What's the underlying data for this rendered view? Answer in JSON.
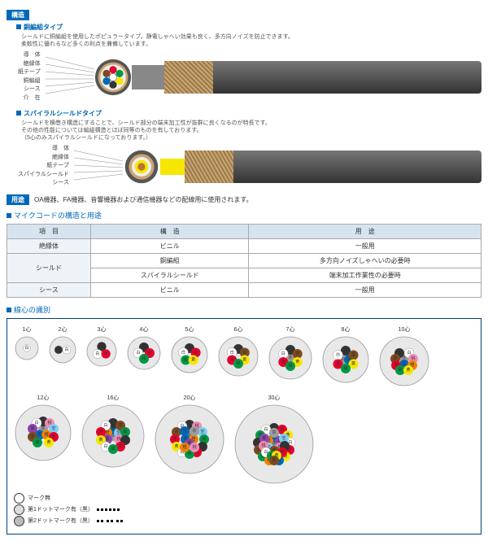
{
  "sections": {
    "structure": "構造",
    "usage": "用途",
    "usage_text": "OA機器、FA機器、音響機器および通信機器などの配線用に使用されます。",
    "table_title": "マイクコードの構造と用途",
    "ident": "線心の識別"
  },
  "type1": {
    "name": "銅編組タイプ",
    "desc1": "シールドに銅編組を使用したポピュラータイプ。静電しゃへい効果も良く、多方向ノイズを防止できます。",
    "desc2": "柔軟性に優れるなど多くの利点を兼備しています。",
    "labels": [
      "導　体",
      "絶縁体",
      "紙テープ",
      "銅編組",
      "シース",
      "介　在"
    ]
  },
  "type2": {
    "name": "スパイラルシールドタイプ",
    "desc1": "シールドを横巻き構造にすることで、シールド部分の端末加工性が抜群に良くなるのが特長です。",
    "desc2": "その他の性能については編組構造とほぼ同等のものを有しております。",
    "desc3": "（5心のみスパイラルシールドになっております。）",
    "labels": [
      "導　体",
      "絶縁体",
      "紙テープ",
      "スパイラルシールド",
      "シース"
    ]
  },
  "table": {
    "headers": [
      "項　目",
      "構　造",
      "用　途"
    ],
    "rows": [
      [
        "絶縁体",
        "ビニル",
        "一般用"
      ],
      [
        "シールド",
        "銅編組",
        "多方向ノイズしゃへいの必要時"
      ],
      [
        "",
        "スパイラルシールド",
        "端末加工作業性の必要時"
      ],
      [
        "シース",
        "ビニル",
        "一般用"
      ]
    ]
  },
  "colors": {
    "白": "#ffffff",
    "黒": "#333333",
    "赤": "#e6002d",
    "緑": "#009944",
    "黄": "#f6e600",
    "茶": "#7c4a1e",
    "青": "#0068b7",
    "灰": "#9e9e9e",
    "桃": "#f08cb4",
    "橙": "#f08300",
    "紫": "#8e44ad",
    "空": "#7ecef4"
  },
  "cores": [
    {
      "label": "1心",
      "r": 14,
      "wires": [
        [
          "白",
          0,
          0
        ]
      ]
    },
    {
      "label": "2心",
      "r": 16,
      "wires": [
        [
          "黒",
          -5,
          0
        ],
        [
          "白",
          5,
          0
        ]
      ]
    },
    {
      "label": "3心",
      "r": 18,
      "wires": [
        [
          "黒",
          0,
          -6
        ],
        [
          "白",
          -5.2,
          3
        ],
        [
          "赤",
          5.2,
          3
        ]
      ]
    },
    {
      "label": "4心",
      "r": 20,
      "wires": [
        [
          "黒",
          0,
          -7
        ],
        [
          "白",
          -7,
          0
        ],
        [
          "赤",
          7,
          0
        ],
        [
          "緑",
          0,
          7
        ]
      ]
    },
    {
      "label": "5心",
      "r": 22,
      "wires": [
        [
          "黒",
          0,
          -8
        ],
        [
          "白",
          -7.6,
          -2.5
        ],
        [
          "赤",
          7.6,
          -2.5
        ],
        [
          "緑",
          -4.7,
          6.5
        ],
        [
          "黄",
          4.7,
          6.5
        ]
      ]
    },
    {
      "label": "6心",
      "r": 24,
      "wires": [
        [
          "黒",
          0,
          -9
        ],
        [
          "白",
          -7.8,
          -4.5
        ],
        [
          "茶",
          7.8,
          -4.5
        ],
        [
          "赤",
          -7.8,
          4.5
        ],
        [
          "黄",
          7.8,
          4.5
        ],
        [
          "緑",
          0,
          9
        ]
      ]
    },
    {
      "label": "7心",
      "r": 26,
      "wires": [
        [
          "灰",
          0,
          0
        ],
        [
          "黒",
          0,
          -10
        ],
        [
          "白",
          -8.7,
          -5
        ],
        [
          "茶",
          8.7,
          -5
        ],
        [
          "赤",
          -8.7,
          5
        ],
        [
          "黄",
          8.7,
          5
        ],
        [
          "緑",
          0,
          10
        ]
      ]
    },
    {
      "label": "8心",
      "r": 28,
      "wires": [
        [
          "灰",
          -4,
          0
        ],
        [
          "青",
          4,
          0
        ],
        [
          "黒",
          0,
          -11
        ],
        [
          "白",
          -9.5,
          -5.5
        ],
        [
          "茶",
          9.5,
          -5.5
        ],
        [
          "赤",
          -9.5,
          5.5
        ],
        [
          "黄",
          9.5,
          5.5
        ],
        [
          "緑",
          0,
          11
        ]
      ]
    },
    {
      "label": "10心",
      "r": 30,
      "wires": [
        [
          "灰",
          0,
          -4
        ],
        [
          "青",
          0,
          4
        ],
        [
          "黒",
          -6,
          -10
        ],
        [
          "白",
          6,
          -10
        ],
        [
          "茶",
          -11,
          -3
        ],
        [
          "桃",
          11,
          -3
        ],
        [
          "赤",
          -10,
          5
        ],
        [
          "橙",
          10,
          5
        ],
        [
          "緑",
          -5,
          11
        ],
        [
          "黄",
          5,
          11
        ]
      ]
    },
    {
      "label": "12心",
      "r": 34,
      "wires": [
        [
          "灰",
          0,
          -5
        ],
        [
          "青",
          -4.3,
          2.5
        ],
        [
          "橙",
          4.3,
          2.5
        ],
        [
          "黒",
          0,
          -14
        ],
        [
          "白",
          -8,
          -12
        ],
        [
          "桃",
          8,
          -12
        ],
        [
          "紫",
          -13,
          -5
        ],
        [
          "空",
          13,
          -5
        ],
        [
          "茶",
          -13,
          5
        ],
        [
          "赤",
          13,
          5
        ],
        [
          "緑",
          -7,
          12
        ],
        [
          "黄",
          7,
          12
        ]
      ]
    },
    {
      "label": "16心",
      "r": 38,
      "wires": [
        [
          "灰",
          0,
          0
        ],
        [
          "青",
          0,
          -8
        ],
        [
          "橙",
          -7,
          -4
        ],
        [
          "空",
          7,
          -4
        ],
        [
          "紫",
          -7,
          4
        ],
        [
          "桃",
          7,
          4
        ],
        [
          "黒",
          0,
          -16
        ],
        [
          "白",
          -9,
          -13
        ],
        [
          "茶",
          9,
          -13
        ],
        [
          "赤",
          -15,
          -5
        ],
        [
          "緑",
          15,
          -5
        ],
        [
          "黄",
          -15,
          5
        ],
        [
          "黒",
          15,
          5
        ],
        [
          "白",
          -9,
          13
        ],
        [
          "赤",
          9,
          13
        ],
        [
          "緑",
          0,
          16
        ]
      ]
    },
    {
      "label": "20心",
      "r": 42,
      "wires": [
        [
          "灰",
          0,
          -5
        ],
        [
          "青",
          -5,
          0
        ],
        [
          "橙",
          5,
          0
        ],
        [
          "紫",
          0,
          5
        ],
        [
          "黒",
          0,
          -18
        ],
        [
          "白",
          -9,
          -16
        ],
        [
          "桃",
          9,
          -16
        ],
        [
          "茶",
          -16,
          -9
        ],
        [
          "空",
          16,
          -9
        ],
        [
          "赤",
          -18,
          0
        ],
        [
          "緑",
          18,
          0
        ],
        [
          "黄",
          -16,
          9
        ],
        [
          "黒",
          16,
          9
        ],
        [
          "白",
          -9,
          16
        ],
        [
          "赤",
          9,
          16
        ],
        [
          "緑",
          0,
          18
        ],
        [
          "青",
          -6,
          -10
        ],
        [
          "灰",
          6,
          -10
        ],
        [
          "橙",
          -6,
          10
        ],
        [
          "桃",
          6,
          10
        ]
      ]
    },
    {
      "label": "30心",
      "r": 48,
      "wires": [
        [
          "灰",
          0,
          0
        ],
        [
          "青",
          0,
          -8
        ],
        [
          "橙",
          -7,
          -4
        ],
        [
          "紫",
          7,
          -4
        ],
        [
          "空",
          -7,
          4
        ],
        [
          "桃",
          7,
          4
        ],
        [
          "茶",
          0,
          8
        ],
        [
          "黒",
          0,
          -20
        ],
        [
          "白",
          -10,
          -18
        ],
        [
          "赤",
          10,
          -18
        ],
        [
          "緑",
          -17,
          -11
        ],
        [
          "黄",
          17,
          -11
        ],
        [
          "黒",
          -20,
          -2
        ],
        [
          "白",
          20,
          -2
        ],
        [
          "茶",
          -19,
          7
        ],
        [
          "赤",
          19,
          7
        ],
        [
          "緑",
          -14,
          15
        ],
        [
          "黄",
          14,
          15
        ],
        [
          "橙",
          -6,
          20
        ],
        [
          "青",
          6,
          20
        ],
        [
          "灰",
          0,
          -14
        ],
        [
          "紫",
          -12,
          -7
        ],
        [
          "空",
          12,
          -7
        ],
        [
          "桃",
          -13,
          2
        ],
        [
          "黒",
          13,
          2
        ],
        [
          "白",
          -10,
          10
        ],
        [
          "赤",
          10,
          10
        ],
        [
          "緑",
          -3,
          14
        ],
        [
          "黄",
          3,
          14
        ],
        [
          "茶",
          0,
          20
        ]
      ]
    }
  ],
  "legend": {
    "l1": "マーク無",
    "l2": "第1ドットマーク有（黒）",
    "l3": "第2ドットマーク有（黒）"
  }
}
